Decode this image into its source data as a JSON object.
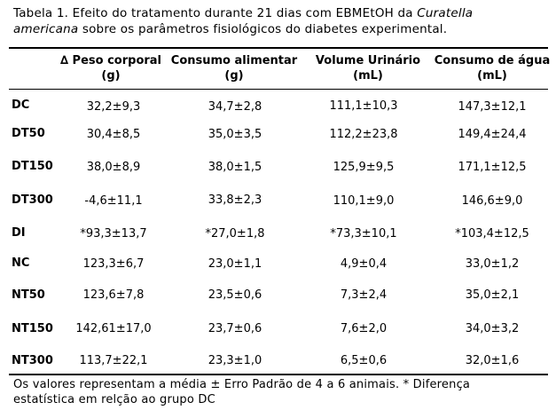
{
  "caption": {
    "part1": "Tabela 1. Efeito do tratamento durante 21 dias com EBMEtOH da ",
    "italic1": "Curatella",
    "line2_italic": "americana",
    "part2": " sobre os parâmetros fisiológicos do diabetes experimental."
  },
  "table": {
    "headers": [
      {
        "line1": "∆ Peso corporal",
        "line2": "(g)"
      },
      {
        "line1": "Consumo alimentar",
        "line2": "(g)"
      },
      {
        "line1": "Volume Urinário",
        "line2": "(mL)"
      },
      {
        "line1": "Consumo de água",
        "line2": "(mL)"
      }
    ],
    "rows": [
      {
        "label": "DC",
        "values": [
          "32,2±9,3",
          "34,7±2,8",
          "111,1±10,3",
          "147,3±12,1"
        ]
      },
      {
        "label": "DT50",
        "values": [
          "30,4±8,5",
          "35,0±3,5",
          "112,2±23,8",
          "149,4±24,4"
        ]
      },
      {
        "label": "DT150",
        "values": [
          "38,0±8,9",
          "38,0±1,5",
          "125,9±9,5",
          "171,1±12,5"
        ]
      },
      {
        "label": "DT300",
        "values": [
          "-4,6±11,1",
          "33,8±2,3",
          "110,1±9,0",
          "146,6±9,0"
        ]
      },
      {
        "label": "DI",
        "values": [
          "*93,3±13,7",
          "*27,0±1,8",
          "*73,3±10,1",
          "*103,4±12,5"
        ]
      },
      {
        "label": "NC",
        "values": [
          "123,3±6,7",
          "23,0±1,1",
          "4,9±0,4",
          "33,0±1,2"
        ]
      },
      {
        "label": "NT50",
        "values": [
          "123,6±7,8",
          "23,5±0,6",
          "7,3±2,4",
          "35,0±2,1"
        ]
      },
      {
        "label": "NT150",
        "values": [
          "142,61±17,0",
          "23,7±0,6",
          "7,6±2,0",
          "34,0±3,2"
        ]
      },
      {
        "label": "NT300",
        "values": [
          "113,7±22,1",
          "23,3±1,0",
          "6,5±0,6",
          "32,0±1,6"
        ]
      }
    ]
  },
  "footnote": {
    "line1": "Os valores representam a média ± Erro Padrão de 4 a 6 animais. * Diferença",
    "line2": "estatística em relção ao grupo DC"
  }
}
